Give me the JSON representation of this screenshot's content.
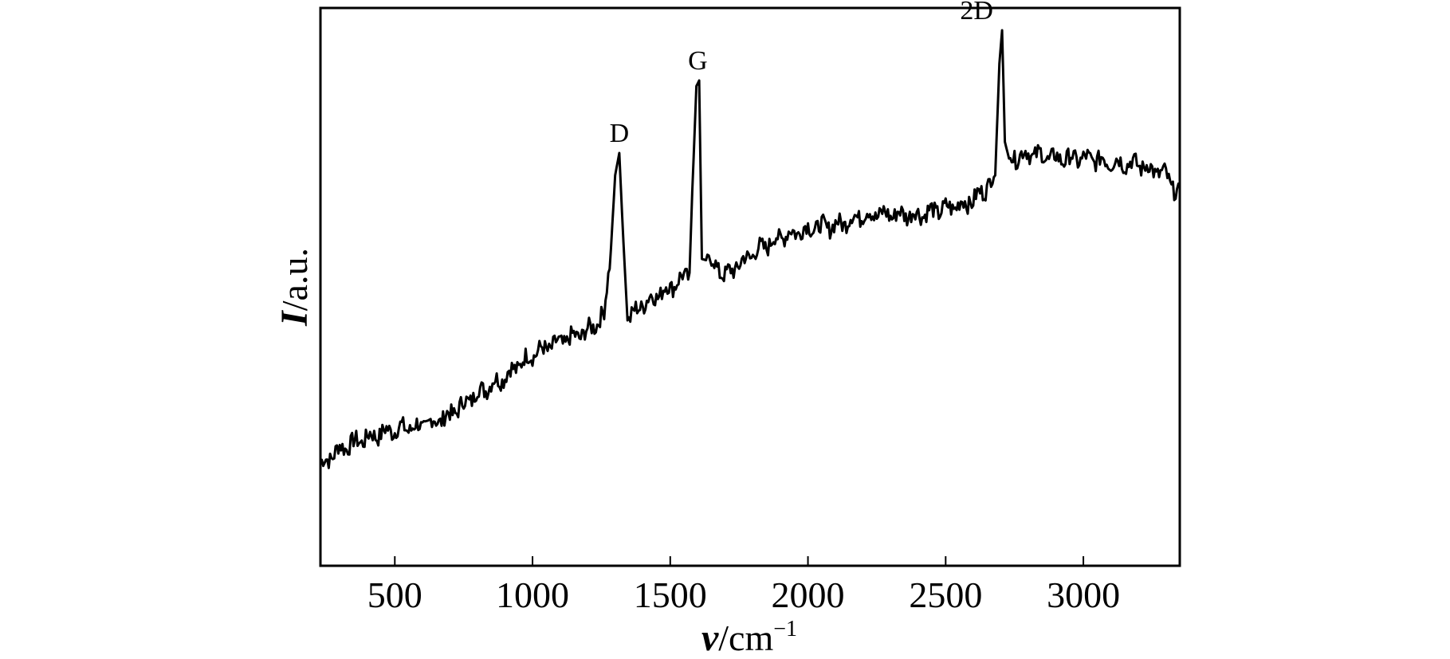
{
  "chart_data": {
    "type": "line",
    "title": "",
    "xlabel": {
      "symbol": "ν",
      "unit": "/cm",
      "superscript": "−1"
    },
    "ylabel": {
      "symbol": "I",
      "unit": "/a.u."
    },
    "xlim": [
      230,
      3350
    ],
    "ylim": [
      0,
      100
    ],
    "x_ticks": [
      500,
      1000,
      1500,
      2000,
      2500,
      3000
    ],
    "x_tick_labels": [
      "500",
      "1000",
      "1500",
      "2000",
      "2500",
      "3000"
    ],
    "y_ticks_shown": false,
    "grid": false,
    "legend": "none",
    "line_color": "#000000",
    "series": [
      {
        "x": [
          230,
          300,
          400,
          500,
          600,
          700,
          800,
          900,
          1000,
          1100,
          1200,
          1260,
          1285,
          1300,
          1315,
          1330,
          1345,
          1400,
          1500,
          1570,
          1580,
          1595,
          1605,
          1615,
          1650,
          1700,
          1800,
          1900,
          2000,
          2100,
          2200,
          2300,
          2400,
          2500,
          2600,
          2650,
          2680,
          2695,
          2705,
          2715,
          2730,
          2800,
          2900,
          3000,
          3100,
          3200,
          3300,
          3350
        ],
        "y": [
          18,
          21,
          23,
          24.5,
          25,
          27,
          31,
          34,
          38,
          40,
          42,
          45,
          57,
          70,
          74,
          58,
          44,
          47,
          50,
          52.5,
          67,
          86,
          87,
          55,
          54.5,
          52,
          56,
          59,
          60.5,
          61,
          63,
          63,
          63,
          64,
          65.5,
          68,
          70,
          90,
          96,
          76,
          73,
          74,
          73,
          73,
          72.5,
          72,
          70,
          66
        ]
      }
    ],
    "annotations": [
      {
        "text": "D",
        "x": 1315,
        "y": 74
      },
      {
        "text": "G",
        "x": 1600,
        "y": 87
      },
      {
        "text": "2D",
        "x": 2705,
        "y": 96
      }
    ]
  }
}
